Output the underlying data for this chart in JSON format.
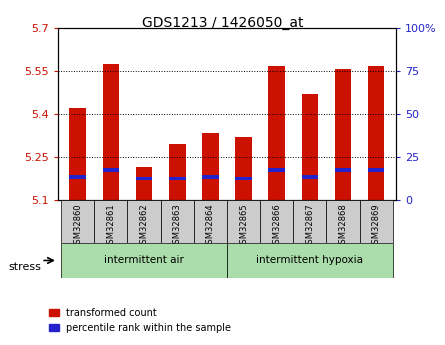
{
  "title": "GDS1213 / 1426050_at",
  "samples": [
    "GSM32860",
    "GSM32861",
    "GSM32862",
    "GSM32863",
    "GSM32864",
    "GSM32865",
    "GSM32866",
    "GSM32867",
    "GSM32868",
    "GSM32869"
  ],
  "transformed_count": [
    5.42,
    5.575,
    5.215,
    5.295,
    5.335,
    5.32,
    5.565,
    5.47,
    5.555,
    5.565
  ],
  "percentile_rank": [
    5.18,
    5.205,
    5.175,
    5.175,
    5.18,
    5.175,
    5.205,
    5.18,
    5.205,
    5.205
  ],
  "ymin": 5.1,
  "ymax": 5.7,
  "yticks_left": [
    5.1,
    5.25,
    5.4,
    5.55,
    5.7
  ],
  "yticks_right": [
    0,
    25,
    50,
    75,
    100
  ],
  "yticks_right_labels": [
    "0",
    "25",
    "50",
    "75",
    "100%"
  ],
  "bar_color_red": "#cc1100",
  "bar_color_blue": "#2222cc",
  "group1_label": "intermittent air",
  "group2_label": "intermittent hypoxia",
  "group1_count": 5,
  "group2_count": 5,
  "stress_label": "stress",
  "legend_red": "transformed count",
  "legend_blue": "percentile rank within the sample",
  "bar_width": 0.5,
  "group_bg_color": "#aaddaa",
  "tick_label_bg": "#cccccc"
}
